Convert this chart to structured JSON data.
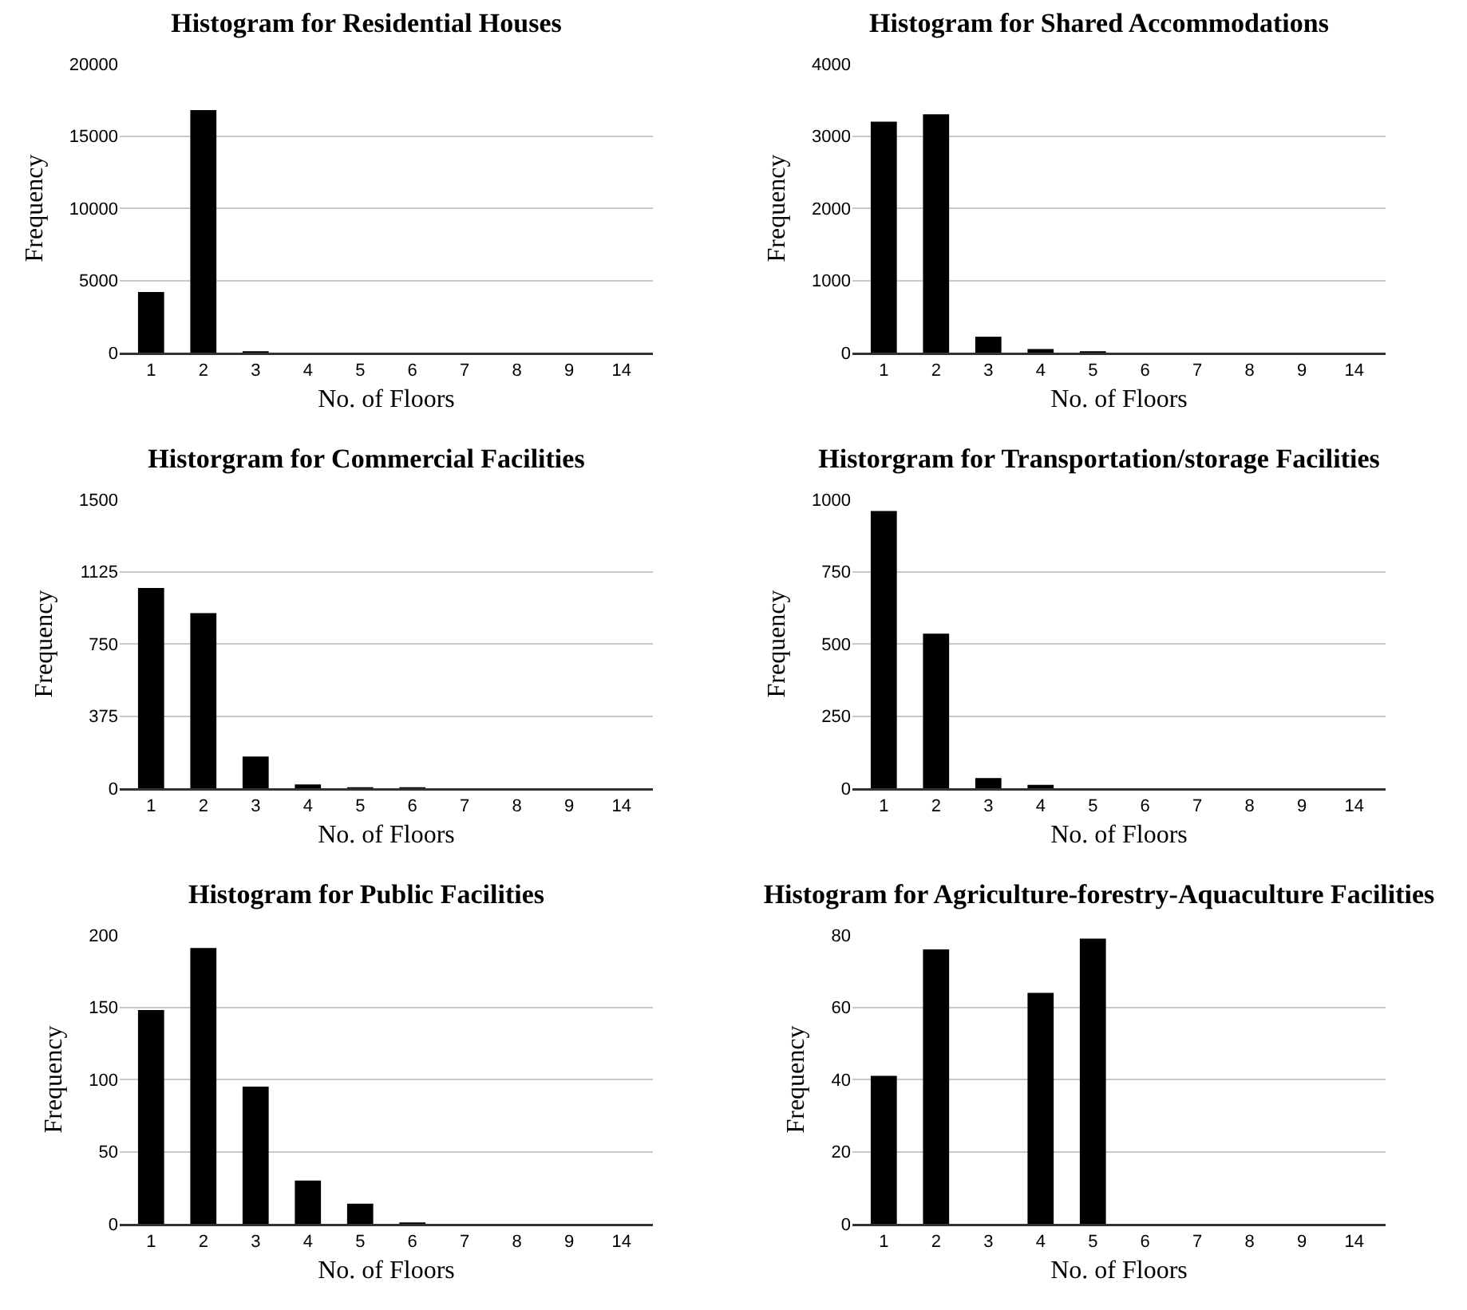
{
  "chart_data": [
    {
      "type": "bar",
      "title": "Histogram for Residential Houses",
      "xlabel": "No. of Floors",
      "ylabel": "Frequency",
      "categories": [
        "1",
        "2",
        "3",
        "4",
        "5",
        "6",
        "7",
        "8",
        "9",
        "14"
      ],
      "values": [
        4200,
        16800,
        100,
        0,
        0,
        0,
        0,
        0,
        0,
        0
      ],
      "color": "#000000",
      "ylim": [
        0,
        20000
      ],
      "yticks": [
        0,
        5000,
        10000,
        15000,
        20000
      ],
      "grid": "y"
    },
    {
      "type": "bar",
      "title": "Histogram for Shared Accommodations",
      "xlabel": "No. of Floors",
      "ylabel": "Frequency",
      "categories": [
        "1",
        "2",
        "3",
        "4",
        "5",
        "6",
        "7",
        "8",
        "9",
        "14"
      ],
      "values": [
        3200,
        3300,
        220,
        50,
        20,
        0,
        0,
        0,
        0,
        0
      ],
      "color": "#000000",
      "ylim": [
        0,
        4000
      ],
      "yticks": [
        0,
        1000,
        2000,
        3000,
        4000
      ],
      "grid": "y"
    },
    {
      "type": "bar",
      "title": "Historgram for Commercial Facilities",
      "xlabel": "No. of Floors",
      "ylabel": "Frequency",
      "categories": [
        "1",
        "2",
        "3",
        "4",
        "5",
        "6",
        "7",
        "8",
        "9",
        "14"
      ],
      "values": [
        1040,
        910,
        165,
        20,
        5,
        5,
        0,
        0,
        0,
        0
      ],
      "color": "#000000",
      "ylim": [
        0,
        1500
      ],
      "yticks": [
        0,
        375,
        750,
        1125,
        1500
      ],
      "grid": "y"
    },
    {
      "type": "bar",
      "title": "Historgram for Transportation/storage Facilities",
      "xlabel": "No. of Floors",
      "ylabel": "Frequency",
      "categories": [
        "1",
        "2",
        "3",
        "4",
        "5",
        "6",
        "7",
        "8",
        "9",
        "14"
      ],
      "values": [
        960,
        535,
        35,
        12,
        null,
        0,
        0,
        0,
        0,
        0
      ],
      "color": "#000000",
      "ylim": [
        0,
        1000
      ],
      "yticks": [
        0,
        250,
        500,
        750,
        1000
      ],
      "grid": "y"
    },
    {
      "type": "bar",
      "title": "Histogram for Public Facilities",
      "xlabel": "No. of Floors",
      "ylabel": "Frequency",
      "categories": [
        "1",
        "2",
        "3",
        "4",
        "5",
        "6",
        "7",
        "8",
        "9",
        "14"
      ],
      "values": [
        148,
        191,
        95,
        30,
        14,
        1,
        0,
        0,
        0,
        0
      ],
      "color": "#000000",
      "ylim": [
        0,
        200
      ],
      "yticks": [
        0,
        50,
        100,
        150,
        200
      ],
      "grid": "y"
    },
    {
      "type": "bar",
      "title": "Histogram for Agriculture-forestry-Aquaculture Facilities",
      "xlabel": "No. of Floors",
      "ylabel": "Frequency",
      "categories": [
        "1",
        "2",
        "3",
        "4",
        "5",
        "6",
        "7",
        "8",
        "9",
        "14"
      ],
      "values": [
        41,
        76,
        0,
        64,
        79,
        0,
        0,
        0,
        0,
        0
      ],
      "color": "#000000",
      "ylim": [
        0,
        80
      ],
      "yticks": [
        0,
        20,
        40,
        60,
        80
      ],
      "grid": "y"
    }
  ]
}
